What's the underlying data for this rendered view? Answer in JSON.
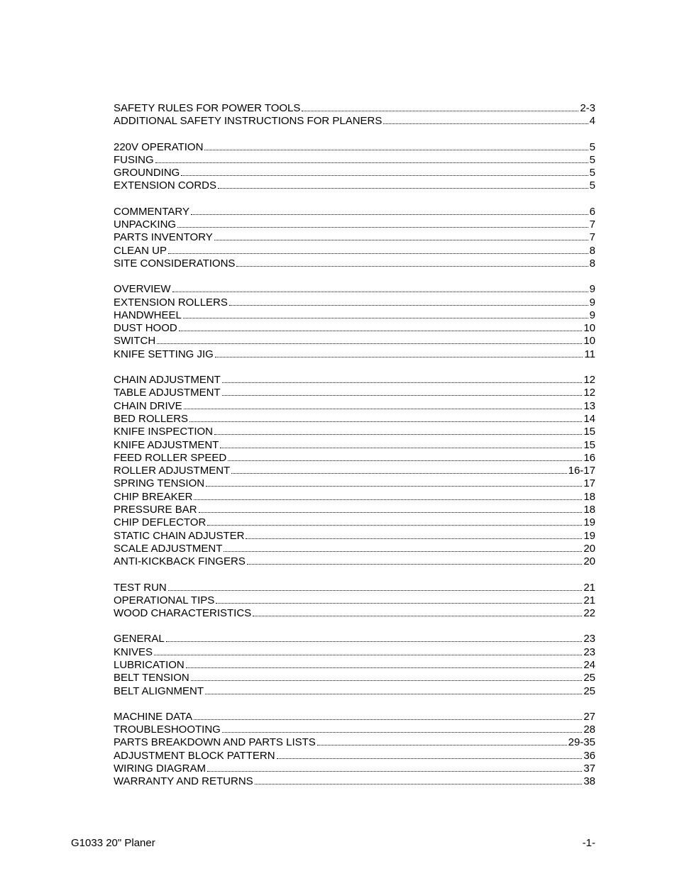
{
  "font_family": "Arial, Helvetica, sans-serif",
  "fontsize_pt": 11,
  "text_color": "#000000",
  "background_color": "#ffffff",
  "sections": [
    [
      {
        "label": "SAFETY RULES FOR POWER TOOLS",
        "page": "2-3"
      },
      {
        "label": "ADDITIONAL SAFETY INSTRUCTIONS FOR PLANERS",
        "page": "4"
      }
    ],
    [
      {
        "label": "220V OPERATION",
        "page": "5"
      },
      {
        "label": "FUSING",
        "page": "5"
      },
      {
        "label": "GROUNDING",
        "page": "5"
      },
      {
        "label": "EXTENSION CORDS",
        "page": "5"
      }
    ],
    [
      {
        "label": "COMMENTARY",
        "page": "6"
      },
      {
        "label": "UNPACKING",
        "page": "7"
      },
      {
        "label": "PARTS INVENTORY",
        "page": "7"
      },
      {
        "label": "CLEAN UP",
        "page": "8"
      },
      {
        "label": "SITE CONSIDERATIONS",
        "page": "8"
      }
    ],
    [
      {
        "label": "OVERVIEW",
        "page": "9"
      },
      {
        "label": "EXTENSION ROLLERS",
        "page": "9"
      },
      {
        "label": "HANDWHEEL",
        "page": "9"
      },
      {
        "label": "DUST HOOD",
        "page": "10"
      },
      {
        "label": "SWITCH",
        "page": "10"
      },
      {
        "label": "KNIFE SETTING JIG",
        "page": "11"
      }
    ],
    [
      {
        "label": "CHAIN ADJUSTMENT",
        "page": "12"
      },
      {
        "label": "TABLE ADJUSTMENT",
        "page": "12"
      },
      {
        "label": "CHAIN DRIVE",
        "page": "13"
      },
      {
        "label": "BED ROLLERS",
        "page": "14"
      },
      {
        "label": "KNIFE INSPECTION",
        "page": "15"
      },
      {
        "label": "KNIFE ADJUSTMENT",
        "page": "15"
      },
      {
        "label": "FEED ROLLER SPEED",
        "page": "16"
      },
      {
        "label": "ROLLER ADJUSTMENT",
        "page": "16-17"
      },
      {
        "label": "SPRING TENSION",
        "page": "17"
      },
      {
        "label": "CHIP BREAKER",
        "page": "18"
      },
      {
        "label": "PRESSURE BAR",
        "page": "18"
      },
      {
        "label": "CHIP DEFLECTOR",
        "page": "19"
      },
      {
        "label": "STATIC CHAIN ADJUSTER",
        "page": "19"
      },
      {
        "label": "SCALE ADJUSTMENT",
        "page": "20"
      },
      {
        "label": "ANTI-KICKBACK FINGERS",
        "page": "20"
      }
    ],
    [
      {
        "label": "TEST RUN",
        "page": "21"
      },
      {
        "label": "OPERATIONAL TIPS",
        "page": "21"
      },
      {
        "label": "WOOD CHARACTERISTICS",
        "page": "22"
      }
    ],
    [
      {
        "label": "GENERAL",
        "page": "23"
      },
      {
        "label": "KNIVES",
        "page": "23"
      },
      {
        "label": "LUBRICATION",
        "page": "24"
      },
      {
        "label": "BELT TENSION",
        "page": "25"
      },
      {
        "label": "BELT ALIGNMENT",
        "page": "25"
      }
    ],
    [
      {
        "label": "MACHINE DATA",
        "page": "27"
      },
      {
        "label": "TROUBLESHOOTING",
        "page": "28"
      },
      {
        "label": "PARTS BREAKDOWN AND PARTS LISTS",
        "page": "29-35"
      },
      {
        "label": "ADJUSTMENT BLOCK PATTERN",
        "page": "36"
      },
      {
        "label": "WIRING DIAGRAM",
        "page": "37"
      },
      {
        "label": "WARRANTY AND RETURNS",
        "page": "38"
      }
    ]
  ],
  "footer": {
    "left": "G1033 20\" Planer",
    "right": "-1-"
  }
}
